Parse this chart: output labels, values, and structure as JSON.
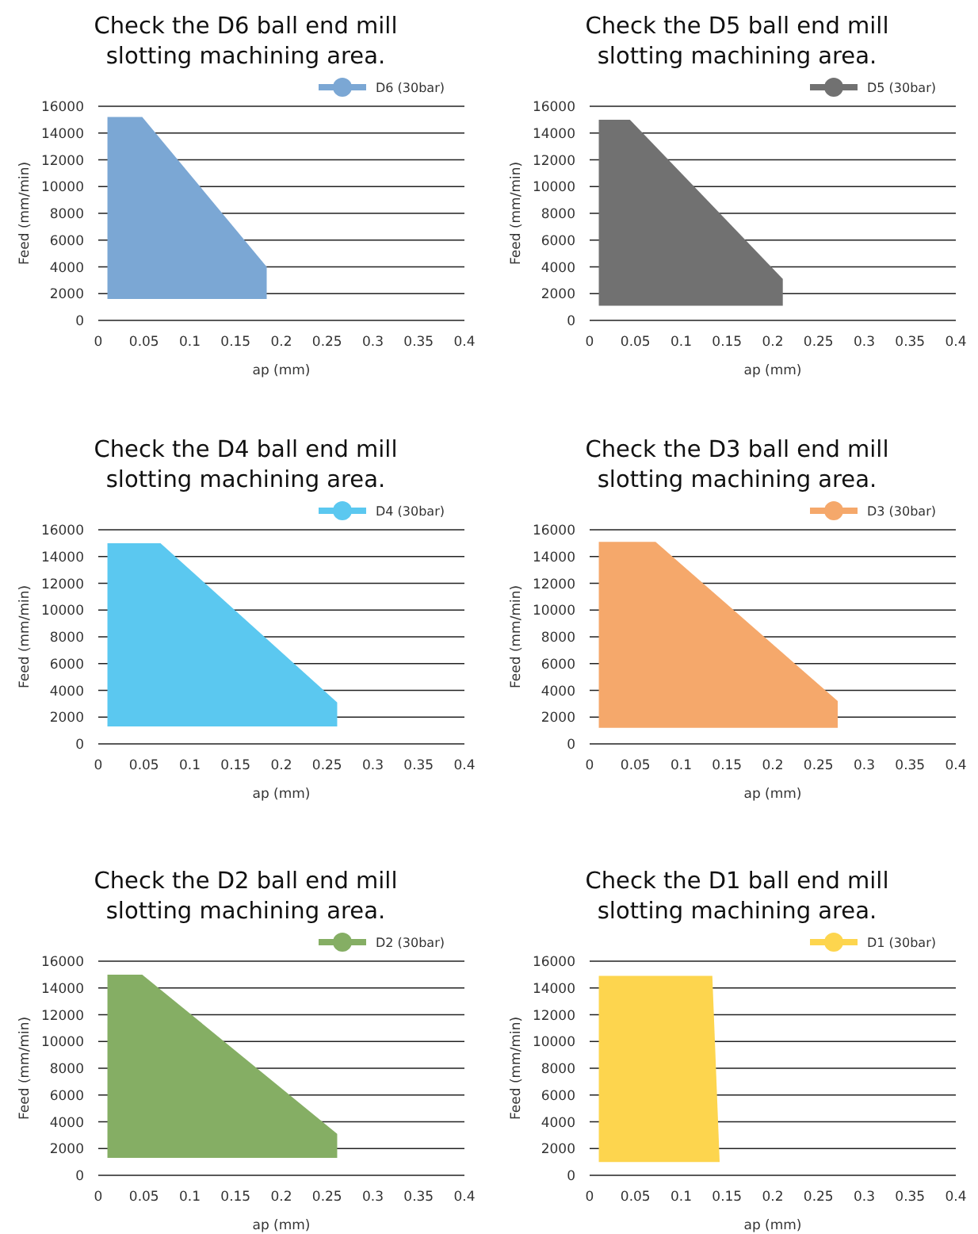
{
  "chart_data": [
    {
      "type": "area",
      "title": "Check the D6 ball end mill slotting machining area.",
      "xlabel": "ap (mm)",
      "ylabel": "Feed (mm/min)",
      "xlim": [
        0,
        0.4
      ],
      "xticks": [
        0,
        0.05,
        0.1,
        0.15,
        0.2,
        0.25,
        0.3,
        0.35,
        0.4
      ],
      "ylim": [
        0,
        16000
      ],
      "yticks": [
        0,
        2000,
        4000,
        6000,
        8000,
        10000,
        12000,
        14000,
        16000
      ],
      "grid": "y",
      "legend": "top right",
      "series": [
        {
          "name": "D6 (30bar)",
          "color": "#7ba7d4",
          "x": [
            0.01,
            0.01,
            0.048,
            0.184,
            0.184
          ],
          "values": [
            1600,
            15200,
            15200,
            4000,
            1600
          ]
        }
      ]
    },
    {
      "type": "area",
      "title": "Check the D5 ball end mill slotting machining area.",
      "xlabel": "ap (mm)",
      "ylabel": "Feed (mm/min)",
      "xlim": [
        0,
        0.4
      ],
      "xticks": [
        0,
        0.05,
        0.1,
        0.15,
        0.2,
        0.25,
        0.3,
        0.35,
        0.4
      ],
      "ylim": [
        0,
        16000
      ],
      "yticks": [
        0,
        2000,
        4000,
        6000,
        8000,
        10000,
        12000,
        14000,
        16000
      ],
      "grid": "y",
      "legend": "top right",
      "series": [
        {
          "name": "D5 (30bar)",
          "color": "#717171",
          "x": [
            0.01,
            0.01,
            0.044,
            0.211,
            0.211
          ],
          "values": [
            1100,
            15000,
            15000,
            3100,
            1100
          ]
        }
      ]
    },
    {
      "type": "area",
      "title": "Check the D4 ball end mill slotting machining area.",
      "xlabel": "ap (mm)",
      "ylabel": "Feed (mm/min)",
      "xlim": [
        0,
        0.4
      ],
      "xticks": [
        0,
        0.05,
        0.1,
        0.15,
        0.2,
        0.25,
        0.3,
        0.35,
        0.4
      ],
      "ylim": [
        0,
        16000
      ],
      "yticks": [
        0,
        2000,
        4000,
        6000,
        8000,
        10000,
        12000,
        14000,
        16000
      ],
      "grid": "y",
      "legend": "top right",
      "series": [
        {
          "name": "D4 (30bar)",
          "color": "#5bc8f0",
          "x": [
            0.01,
            0.01,
            0.068,
            0.261,
            0.261
          ],
          "values": [
            1300,
            15000,
            15000,
            3100,
            1300
          ]
        }
      ]
    },
    {
      "type": "area",
      "title": "Check the D3 ball end mill slotting machining area.",
      "xlabel": "ap (mm)",
      "ylabel": "Feed (mm/min)",
      "xlim": [
        0,
        0.4
      ],
      "xticks": [
        0,
        0.05,
        0.1,
        0.15,
        0.2,
        0.25,
        0.3,
        0.35,
        0.4
      ],
      "ylim": [
        0,
        16000
      ],
      "yticks": [
        0,
        2000,
        4000,
        6000,
        8000,
        10000,
        12000,
        14000,
        16000
      ],
      "grid": "y",
      "legend": "top right",
      "series": [
        {
          "name": "D3 (30bar)",
          "color": "#f5a86b",
          "x": [
            0.01,
            0.01,
            0.072,
            0.271,
            0.271
          ],
          "values": [
            1200,
            15100,
            15100,
            3200,
            1200
          ]
        }
      ]
    },
    {
      "type": "area",
      "title": "Check the D2 ball end mill slotting machining area.",
      "xlabel": "ap (mm)",
      "ylabel": "Feed (mm/min)",
      "xlim": [
        0,
        0.4
      ],
      "xticks": [
        0,
        0.05,
        0.1,
        0.15,
        0.2,
        0.25,
        0.3,
        0.35,
        0.4
      ],
      "ylim": [
        0,
        16000
      ],
      "yticks": [
        0,
        2000,
        4000,
        6000,
        8000,
        10000,
        12000,
        14000,
        16000
      ],
      "grid": "y",
      "legend": "top right",
      "series": [
        {
          "name": "D2 (30bar)",
          "color": "#85ae64",
          "x": [
            0.01,
            0.01,
            0.048,
            0.261,
            0.261
          ],
          "values": [
            1300,
            15000,
            15000,
            3100,
            1300
          ]
        }
      ]
    },
    {
      "type": "area",
      "title": "Check the D1 ball end mill slotting machining area.",
      "xlabel": "ap (mm)",
      "ylabel": "Feed (mm/min)",
      "xlim": [
        0,
        0.4
      ],
      "xticks": [
        0,
        0.05,
        0.1,
        0.15,
        0.2,
        0.25,
        0.3,
        0.35,
        0.4
      ],
      "ylim": [
        0,
        16000
      ],
      "yticks": [
        0,
        2000,
        4000,
        6000,
        8000,
        10000,
        12000,
        14000,
        16000
      ],
      "grid": "y",
      "legend": "top right",
      "series": [
        {
          "name": "D1 (30bar)",
          "color": "#fdd54e",
          "x": [
            0.01,
            0.01,
            0.134,
            0.142
          ],
          "values": [
            1000,
            14900,
            14900,
            1000
          ]
        }
      ]
    }
  ]
}
